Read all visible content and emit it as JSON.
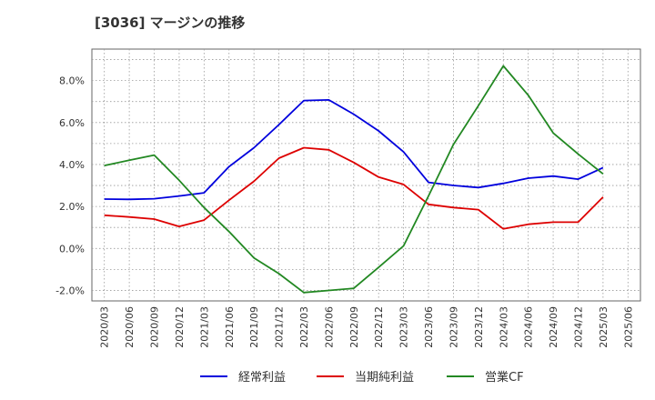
{
  "chart_data": {
    "type": "line",
    "title": "[3036]  マージンの推移",
    "xlabel": "",
    "ylabel": "",
    "x": [
      "2020/03",
      "2020/06",
      "2020/09",
      "2020/12",
      "2021/03",
      "2021/06",
      "2021/09",
      "2021/12",
      "2022/03",
      "2022/06",
      "2022/09",
      "2022/12",
      "2023/03",
      "2023/06",
      "2023/09",
      "2023/12",
      "2024/03",
      "2024/06",
      "2024/09",
      "2024/12",
      "2025/03",
      "2025/06"
    ],
    "ylim": [
      -2.5,
      9.5
    ],
    "yticks": [
      -2.0,
      0.0,
      2.0,
      4.0,
      6.0,
      8.0
    ],
    "ytick_labels": [
      "-2.0%",
      "0.0%",
      "2.0%",
      "4.0%",
      "6.0%",
      "8.0%"
    ],
    "grid": true,
    "legend_position": "bottom",
    "series": [
      {
        "name": "経常利益",
        "color": "#0000dd",
        "values": [
          2.35,
          2.34,
          2.37,
          2.5,
          2.65,
          3.9,
          4.8,
          5.9,
          7.05,
          7.08,
          6.4,
          5.6,
          4.6,
          3.15,
          3.0,
          2.9,
          3.1,
          3.35,
          3.45,
          3.3,
          3.85,
          null
        ]
      },
      {
        "name": "当期純利益",
        "color": "#dd0000",
        "values": [
          1.58,
          1.5,
          1.4,
          1.05,
          1.35,
          2.3,
          3.2,
          4.3,
          4.8,
          4.7,
          4.1,
          3.4,
          3.05,
          2.1,
          1.95,
          1.85,
          0.93,
          1.15,
          1.25,
          1.25,
          2.45,
          null
        ]
      },
      {
        "name": "営業CF",
        "color": "#228822",
        "values": [
          3.95,
          4.2,
          4.45,
          3.25,
          1.95,
          0.8,
          -0.45,
          -1.2,
          -2.1,
          -2.0,
          -1.9,
          -0.9,
          0.12,
          2.5,
          4.95,
          6.8,
          8.7,
          7.3,
          5.5,
          4.5,
          3.55,
          null
        ]
      }
    ]
  }
}
